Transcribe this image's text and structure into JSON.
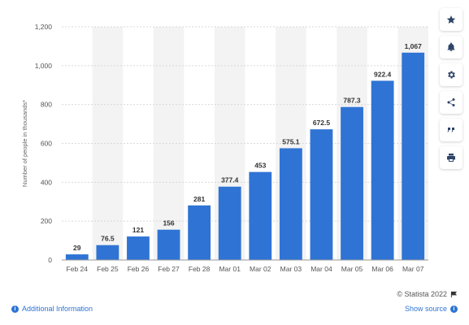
{
  "chart_data": {
    "type": "bar",
    "categories": [
      "Feb 24",
      "Feb 25",
      "Feb 26",
      "Feb 27",
      "Feb 28",
      "Mar 01",
      "Mar 02",
      "Mar 03",
      "Mar 04",
      "Mar 05",
      "Mar 06",
      "Mar 07"
    ],
    "values": [
      29,
      76.5,
      121,
      156,
      281,
      377.4,
      453,
      575.1,
      672.5,
      787.3,
      922.4,
      1067
    ],
    "value_labels": [
      "29",
      "76.5",
      "121",
      "156",
      "281",
      "377.4",
      "453",
      "575.1",
      "672.5",
      "787.3",
      "922.4",
      "1,067"
    ],
    "ylabel": "Number of people in thousands*",
    "ylim": [
      0,
      1200
    ],
    "yticks": [
      0,
      200,
      400,
      600,
      800,
      1000,
      1200
    ],
    "ytick_labels": [
      "0",
      "200",
      "400",
      "600",
      "800",
      "1,000",
      "1,200"
    ],
    "grid": true,
    "bar_color": "#2f74d4",
    "alt_band_color": "#f3f3f3"
  },
  "toolbar": {
    "buttons": [
      {
        "name": "favorite",
        "icon": "star-icon"
      },
      {
        "name": "notify",
        "icon": "bell-icon"
      },
      {
        "name": "settings",
        "icon": "gear-icon"
      },
      {
        "name": "share",
        "icon": "share-icon"
      },
      {
        "name": "cite",
        "icon": "quote-icon"
      },
      {
        "name": "print",
        "icon": "printer-icon"
      }
    ]
  },
  "footer": {
    "credit": "© Statista 2022",
    "additional_info": "Additional Information",
    "show_source": "Show source"
  },
  "colors": {
    "link": "#2f74d4",
    "toolbar_icon": "#2e4468"
  }
}
